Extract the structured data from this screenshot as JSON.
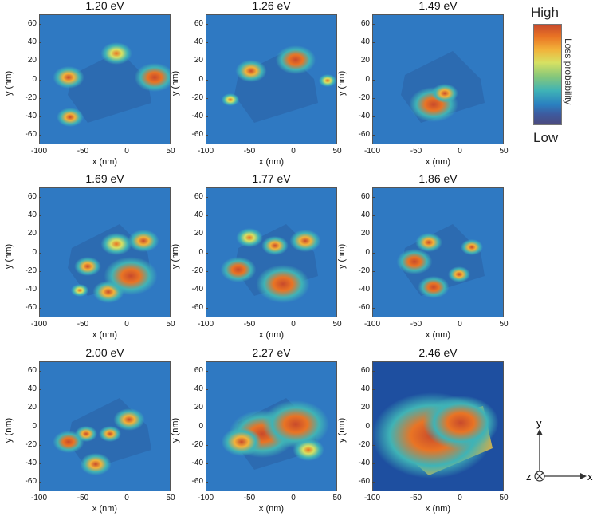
{
  "chart_data": {
    "type": "heatmap",
    "panels": [
      {
        "title": "1.20 eV",
        "xlabel": "x (nm)",
        "ylabel": "y (nm)",
        "xlim": [
          -100,
          50
        ],
        "ylim": [
          -70,
          70
        ]
      },
      {
        "title": "1.26 eV",
        "xlabel": "x (nm)",
        "ylabel": "y (nm)",
        "xlim": [
          -100,
          50
        ],
        "ylim": [
          -70,
          70
        ]
      },
      {
        "title": "1.49 eV",
        "xlabel": "x (nm)",
        "ylabel": "y (nm)",
        "xlim": [
          -100,
          50
        ],
        "ylim": [
          -70,
          70
        ]
      },
      {
        "title": "1.69 eV",
        "xlabel": "x (nm)",
        "ylabel": "y (nm)",
        "xlim": [
          -100,
          50
        ],
        "ylim": [
          -70,
          70
        ]
      },
      {
        "title": "1.77 eV",
        "xlabel": "x (nm)",
        "ylabel": "y (nm)",
        "xlim": [
          -100,
          50
        ],
        "ylim": [
          -70,
          70
        ]
      },
      {
        "title": "1.86 eV",
        "xlabel": "x (nm)",
        "ylabel": "y (nm)",
        "xlim": [
          -100,
          50
        ],
        "ylim": [
          -70,
          70
        ]
      },
      {
        "title": "2.00 eV",
        "xlabel": "x (nm)",
        "ylabel": "y (nm)",
        "xlim": [
          -100,
          50
        ],
        "ylim": [
          -70,
          70
        ]
      },
      {
        "title": "2.27 eV",
        "xlabel": "x (nm)",
        "ylabel": "y (nm)",
        "xlim": [
          -100,
          50
        ],
        "ylim": [
          -70,
          70
        ]
      },
      {
        "title": "2.46 eV",
        "xlabel": "x (nm)",
        "ylabel": "y (nm)",
        "xlim": [
          -100,
          50
        ],
        "ylim": [
          -70,
          70
        ]
      }
    ],
    "x_ticks": [
      -100,
      -50,
      0,
      50
    ],
    "y_ticks": [
      60,
      40,
      20,
      0,
      -20,
      -40,
      -60
    ],
    "colorbar": {
      "high_label": "High",
      "low_label": "Low",
      "label": "Loss probability",
      "colors": [
        "#c84a2c",
        "#e97424",
        "#f2b23a",
        "#d7e162",
        "#86c77a",
        "#3fb3b6",
        "#2a80c0",
        "#3e5a9e",
        "#4b4a7e"
      ]
    },
    "axes_indicator": {
      "x": "x",
      "y": "y",
      "z": "z"
    }
  }
}
